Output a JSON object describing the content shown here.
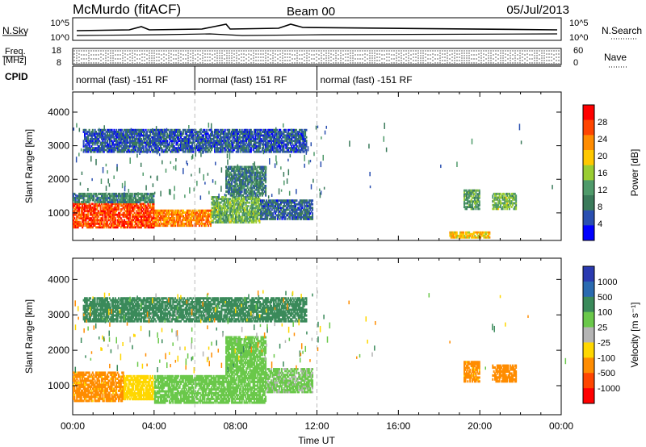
{
  "header": {
    "station": "McMurdo (fitACF)",
    "beam": "Beam 00",
    "date": "05/Jul/2013"
  },
  "noise_panel": {
    "left_label": "N.Sky",
    "right_label": "N.Search",
    "left_ticks": [
      "10^5",
      "10^0"
    ],
    "right_ticks": [
      "10^5",
      "10^0"
    ]
  },
  "freq_panel": {
    "left_label_1": "Freq.",
    "left_label_2": "[MHz]",
    "left_ticks": [
      "18",
      "8"
    ],
    "right_ticks": [
      "60",
      "0"
    ],
    "right_label": "Nave"
  },
  "cpid": {
    "label": "CPID",
    "segments": [
      {
        "text": "normal (fast) -151 RF",
        "start_h": 0,
        "end_h": 6
      },
      {
        "text": "normal (fast) 151 RF",
        "start_h": 6,
        "end_h": 12
      },
      {
        "text": "normal (fast) -151 RF",
        "start_h": 12,
        "end_h": 24
      }
    ]
  },
  "colors": {
    "power": [
      "#0000ff",
      "#2a4fb0",
      "#3a7a5a",
      "#4f9a6a",
      "#9acd32",
      "#ffc800",
      "#ff8c00",
      "#ff4500",
      "#ff0000"
    ],
    "velocity": [
      "#2a3ab0",
      "#2a6ab0",
      "#3a8a5a",
      "#6ac84a",
      "#b4b4b4",
      "#ffd700",
      "#ff8c00",
      "#ff4500",
      "#ff0000"
    ]
  },
  "chart_data": [
    {
      "type": "heatmap",
      "title": "",
      "xlabel": "Time UT",
      "ylabel": "Slant Range [km]",
      "colorbar_label": "Power [dB]",
      "colorbar_ticks": [
        "28",
        "24",
        "20",
        "16",
        "12",
        "8",
        "4"
      ],
      "x_ticks": [
        "00:00",
        "04:00",
        "08:00",
        "12:00",
        "16:00",
        "20:00",
        "00:00"
      ],
      "y_ticks": [
        "4000",
        "3000",
        "2000",
        "1000"
      ],
      "xlim": [
        0,
        24
      ],
      "ylim": [
        180,
        4600
      ],
      "clim": [
        0,
        32
      ],
      "grid": false,
      "regions": [
        {
          "t0": 0.0,
          "t1": 4.0,
          "r0": 550,
          "r1": 1300,
          "value": 27
        },
        {
          "t0": 0.0,
          "t1": 4.0,
          "r0": 1300,
          "r1": 1600,
          "value": 10
        },
        {
          "t0": 4.0,
          "t1": 6.8,
          "r0": 600,
          "r1": 1100,
          "value": 24
        },
        {
          "t0": 6.8,
          "t1": 9.2,
          "r0": 700,
          "r1": 1500,
          "value": 14
        },
        {
          "t0": 7.5,
          "t1": 9.5,
          "r0": 1500,
          "r1": 2400,
          "value": 9
        },
        {
          "t0": 9.2,
          "t1": 11.8,
          "r0": 800,
          "r1": 1400,
          "value": 7
        },
        {
          "t0": 0.5,
          "t1": 11.5,
          "r0": 2800,
          "r1": 3500,
          "value": 6
        },
        {
          "t0": 19.2,
          "t1": 20.0,
          "r0": 1100,
          "r1": 1700,
          "value": 12
        },
        {
          "t0": 20.6,
          "t1": 21.8,
          "r0": 1100,
          "r1": 1600,
          "value": 14
        },
        {
          "t0": 18.5,
          "t1": 20.5,
          "r0": 250,
          "r1": 450,
          "value": 20
        }
      ]
    },
    {
      "type": "heatmap",
      "title": "",
      "xlabel": "Time UT",
      "ylabel": "Slant Range [km]",
      "colorbar_label": "Velocity [m s⁻¹]",
      "colorbar_ticks": [
        "1000",
        "500",
        "100",
        "25",
        "-25",
        "-100",
        "-500",
        "-1000"
      ],
      "x_ticks": [
        "00:00",
        "04:00",
        "08:00",
        "12:00",
        "16:00",
        "20:00",
        "00:00"
      ],
      "y_ticks": [
        "4000",
        "3000",
        "2000",
        "1000"
      ],
      "xlim": [
        0,
        24
      ],
      "ylim": [
        180,
        4600
      ],
      "grid": false,
      "regions": [
        {
          "t0": 0.0,
          "t1": 2.5,
          "r0": 550,
          "r1": 1400,
          "value": -150
        },
        {
          "t0": 2.5,
          "t1": 4.0,
          "r0": 600,
          "r1": 1300,
          "value": -60
        },
        {
          "t0": 4.0,
          "t1": 9.5,
          "r0": 500,
          "r1": 1300,
          "value": 60
        },
        {
          "t0": 7.5,
          "t1": 9.5,
          "r0": 1300,
          "r1": 2400,
          "value": 60
        },
        {
          "t0": 9.5,
          "t1": 11.8,
          "r0": 800,
          "r1": 1500,
          "value": 40
        },
        {
          "t0": 0.5,
          "t1": 11.5,
          "r0": 2800,
          "r1": 3500,
          "value": 200
        },
        {
          "t0": 19.2,
          "t1": 20.0,
          "r0": 1100,
          "r1": 1700,
          "value": -150
        },
        {
          "t0": 20.6,
          "t1": 21.8,
          "r0": 1100,
          "r1": 1600,
          "value": -200
        }
      ]
    }
  ]
}
